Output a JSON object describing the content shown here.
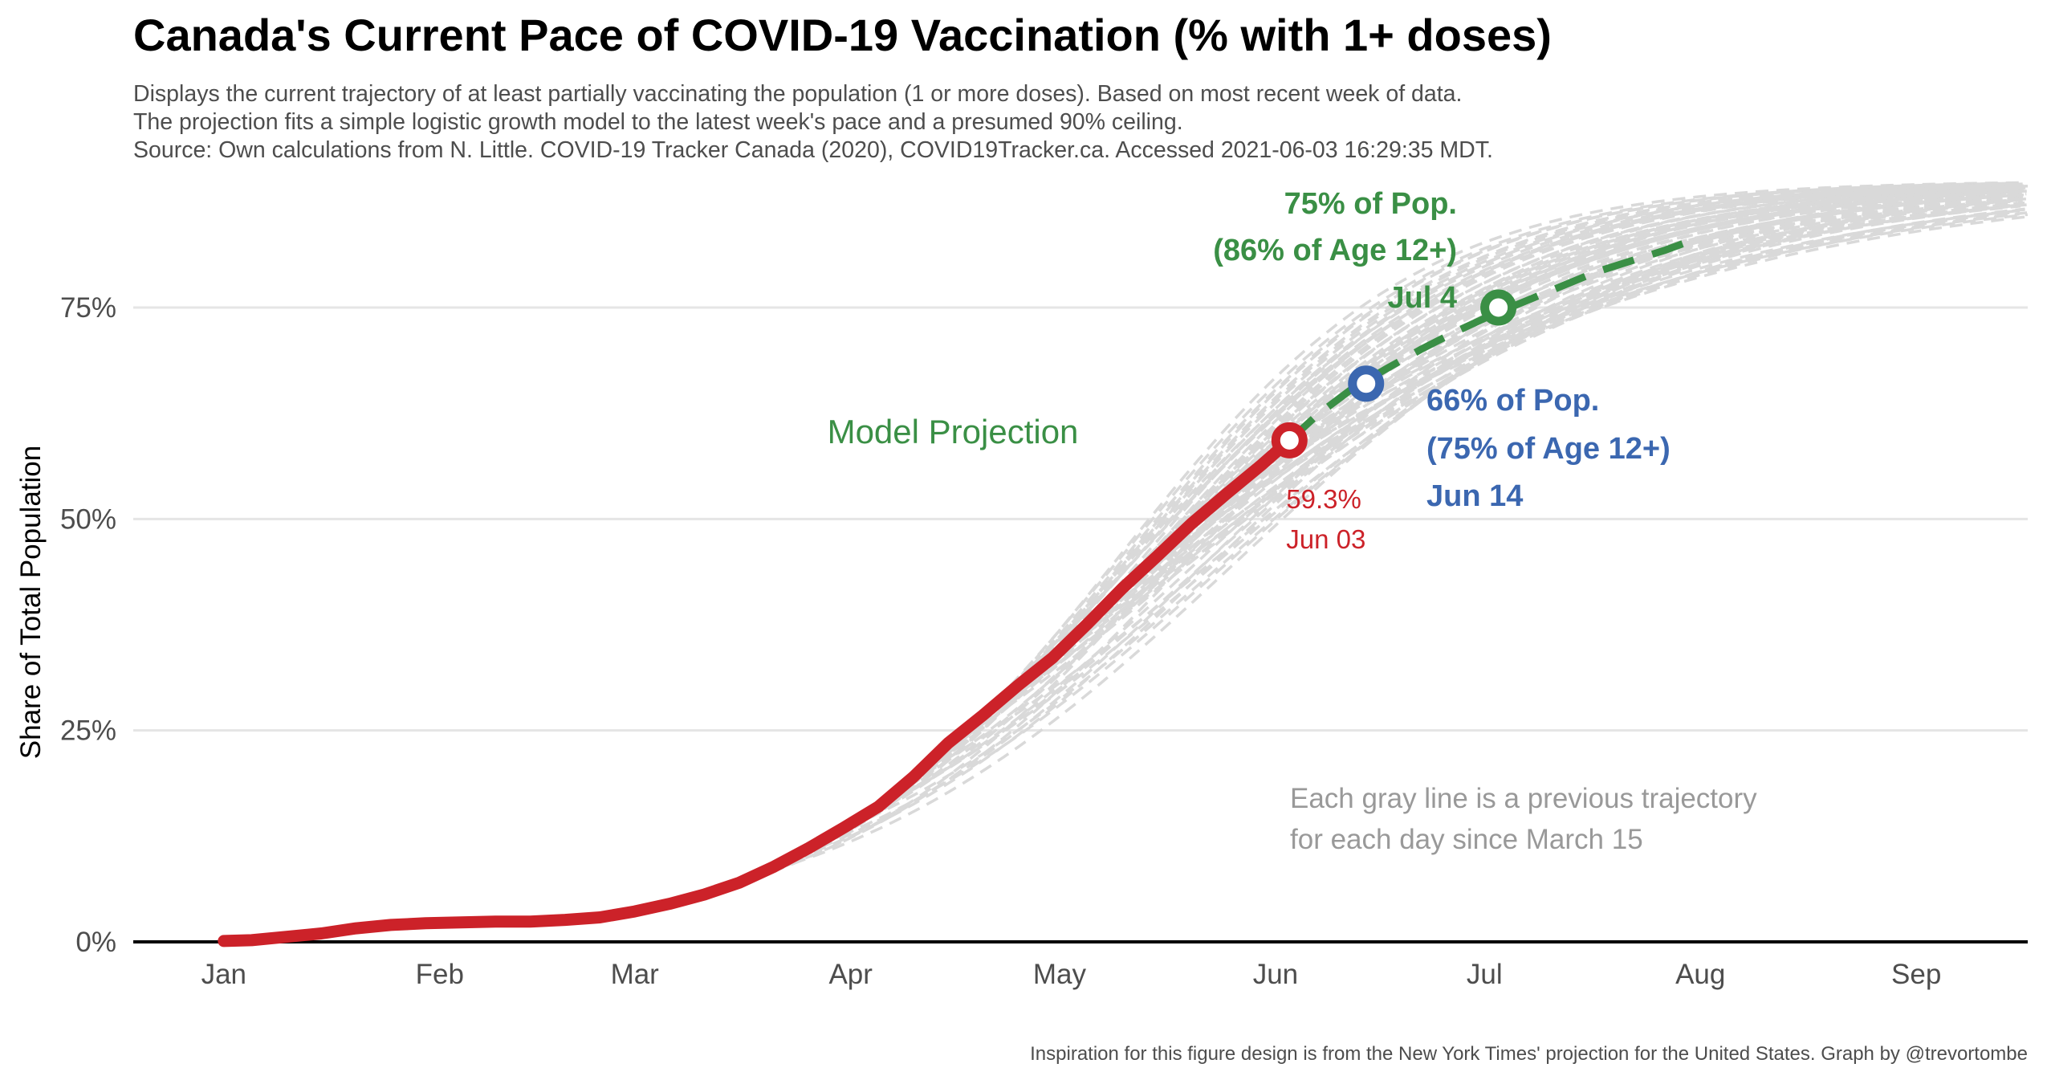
{
  "chart_data": {
    "type": "line",
    "title": "Canada's Current Pace of COVID-19 Vaccination (% with 1+ doses)",
    "subtitle": [
      "Displays the current trajectory of at least partially vaccinating the population (1 or more doses). Based on most recent week of data.",
      "The projection fits a simple logistic growth model to the latest week's pace and a presumed 90% ceiling.",
      "Source: Own calculations from N. Little. COVID-19 Tracker Canada (2020), COVID19Tracker.ca. Accessed 2021-06-03 16:29:35 MDT."
    ],
    "caption": "Inspiration for this figure design is from the New York Times' projection for the United States. Graph by @trevortombe",
    "xlabel": "",
    "ylabel": "Share of Total Population",
    "x_unit": "day of year 2021",
    "xlim": [
      -12,
      260
    ],
    "ylim": [
      0,
      90
    ],
    "x_ticks": [
      {
        "label": "Jan",
        "value": 1
      },
      {
        "label": "Feb",
        "value": 32
      },
      {
        "label": "Mar",
        "value": 60
      },
      {
        "label": "Apr",
        "value": 91
      },
      {
        "label": "May",
        "value": 121
      },
      {
        "label": "Jun",
        "value": 152
      },
      {
        "label": "Jul",
        "value": 182
      },
      {
        "label": "Aug",
        "value": 213
      },
      {
        "label": "Sep",
        "value": 244
      }
    ],
    "y_ticks": [
      {
        "label": "0%",
        "value": 0
      },
      {
        "label": "25%",
        "value": 25
      },
      {
        "label": "50%",
        "value": 50
      },
      {
        "label": "75%",
        "value": 75
      }
    ],
    "grid": true,
    "series": [
      {
        "kind": "actual",
        "color": "#cc2229",
        "x": [
          1,
          5,
          10,
          15,
          20,
          25,
          30,
          35,
          40,
          45,
          50,
          55,
          60,
          65,
          70,
          75,
          80,
          85,
          90,
          95,
          100,
          105,
          110,
          115,
          120,
          125,
          130,
          135,
          140,
          145,
          150,
          154
        ],
        "y": [
          0.1,
          0.2,
          0.6,
          1.0,
          1.6,
          2.0,
          2.2,
          2.3,
          2.4,
          2.4,
          2.6,
          2.9,
          3.6,
          4.5,
          5.6,
          7.0,
          8.9,
          11.1,
          13.5,
          16.0,
          19.5,
          23.5,
          26.8,
          30.3,
          33.6,
          37.6,
          41.8,
          45.6,
          49.5,
          53.0,
          56.4,
          59.3
        ]
      },
      {
        "kind": "projection",
        "color": "#3a8f45",
        "x": [
          154,
          158,
          163,
          168,
          173,
          178,
          183,
          188,
          193,
          198,
          203,
          208,
          212
        ],
        "y": [
          59.3,
          62.3,
          65.4,
          67.8,
          70.1,
          72.2,
          74.1,
          75.8,
          77.5,
          79.2,
          80.5,
          81.8,
          83.0
        ]
      }
    ],
    "previous_trajectories": {
      "label": "Each gray line is a previous trajectory for each day since March 15",
      "color": "#d9d9d9",
      "count": 79,
      "start_day_first": 74,
      "start_day_last": 153,
      "ceiling": 90
    },
    "points": [
      {
        "label": "59.3%",
        "sublabel": "Jun 03",
        "x": 154,
        "y": 59.3,
        "color": "#cc2229"
      },
      {
        "label": "66% of Pop.",
        "sublabel": "(75% of Age 12+)",
        "date": "Jun 14",
        "x": 165,
        "y": 66,
        "color": "#3b67b0"
      },
      {
        "label": "75% of Pop.",
        "sublabel": "(86% of Age 12+)",
        "date": "Jul 4",
        "x": 184,
        "y": 75,
        "color": "#3a8f45"
      }
    ],
    "annotations": {
      "model_projection": "Model Projection",
      "gray_note_line1": "Each gray line is a previous trajectory",
      "gray_note_line2": "for each day since March 15"
    }
  }
}
